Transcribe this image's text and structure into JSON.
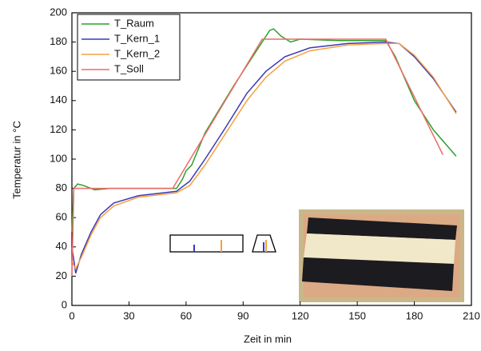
{
  "chart_data": {
    "type": "line",
    "xlabel": "Zeit in min",
    "ylabel": "Temperatur in °C",
    "xlim": [
      0,
      210
    ],
    "xticks": [
      0,
      30,
      60,
      90,
      120,
      150,
      180,
      210
    ],
    "ylim": [
      0,
      200
    ],
    "yticks": [
      0,
      20,
      40,
      60,
      80,
      100,
      120,
      140,
      160,
      180,
      200
    ],
    "legend": "upper left",
    "series": [
      {
        "name": "T_Raum",
        "color": "#2ca02c",
        "x": [
          0,
          1,
          3,
          6,
          12,
          20,
          40,
          55,
          58,
          60,
          63,
          70,
          85,
          100,
          104,
          106,
          110,
          115,
          120,
          140,
          165,
          170,
          180,
          190,
          202
        ],
        "values": [
          50,
          80,
          83,
          82,
          79,
          80,
          80,
          80,
          86,
          92,
          96,
          118,
          150,
          180,
          188,
          189,
          184,
          180,
          182,
          181,
          181,
          170,
          140,
          120,
          102
        ]
      },
      {
        "name": "T_Kern_1",
        "color": "#3a3ab8",
        "x": [
          0,
          2,
          5,
          10,
          15,
          22,
          35,
          55,
          62,
          70,
          80,
          92,
          102,
          112,
          125,
          145,
          165,
          172,
          180,
          190,
          202
        ],
        "values": [
          40,
          22,
          35,
          50,
          62,
          70,
          75,
          78,
          85,
          100,
          120,
          145,
          160,
          170,
          176,
          179,
          180,
          179,
          170,
          155,
          132
        ]
      },
      {
        "name": "T_Kern_2",
        "color": "#f5a040",
        "x": [
          0,
          2,
          5,
          10,
          15,
          22,
          35,
          55,
          62,
          70,
          80,
          92,
          102,
          112,
          125,
          145,
          165,
          172,
          180,
          190,
          202
        ],
        "values": [
          30,
          25,
          33,
          48,
          60,
          68,
          74,
          77,
          82,
          96,
          116,
          140,
          156,
          167,
          174,
          178,
          179,
          179,
          171,
          156,
          131
        ]
      },
      {
        "name": "T_Soll",
        "color": "#f06a6a",
        "x": [
          0,
          1,
          53,
          100,
          165,
          195
        ],
        "values": [
          20,
          80,
          80,
          182,
          182,
          103
        ]
      }
    ]
  }
}
